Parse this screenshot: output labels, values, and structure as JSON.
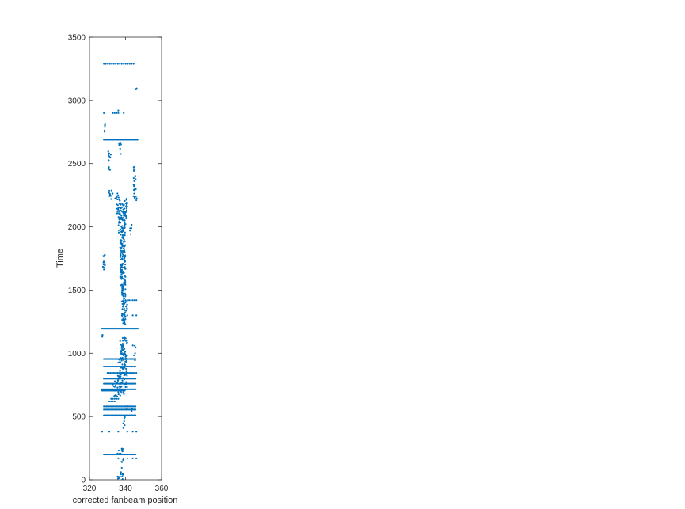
{
  "chart_data": {
    "type": "scatter",
    "title": "",
    "xlabel": "corrected fanbeam position",
    "ylabel": "Time",
    "xlim": [
      320,
      360
    ],
    "ylim": [
      0,
      3500
    ],
    "xticks": [
      320,
      340,
      360
    ],
    "yticks": [
      0,
      500,
      1000,
      1500,
      2000,
      2500,
      3000,
      3500
    ],
    "xtick_labels": [
      "320",
      "340",
      "360"
    ],
    "ytick_labels": [
      "0",
      "500",
      "1000",
      "1500",
      "2000",
      "2500",
      "3000",
      "3500"
    ],
    "grid": false,
    "marker_color": "#0072BD",
    "axis_color": "#262626",
    "series": [
      {
        "dense_rows": [
          {
            "y": 3290,
            "x_from": 328,
            "x_to": 345,
            "step": 1.1
          },
          {
            "y": 2690,
            "x_from": 328,
            "x_to": 347,
            "step": 0.55
          },
          {
            "y": 1195,
            "x_from": 327,
            "x_to": 347,
            "step": 0.6
          },
          {
            "y": 955,
            "x_from": 328,
            "x_to": 346,
            "step": 0.7
          },
          {
            "y": 895,
            "x_from": 328,
            "x_to": 346,
            "step": 0.7
          },
          {
            "y": 845,
            "x_from": 330,
            "x_to": 346,
            "step": 0.8
          },
          {
            "y": 800,
            "x_from": 328,
            "x_to": 346,
            "step": 0.7
          },
          {
            "y": 760,
            "x_from": 328,
            "x_to": 346,
            "step": 0.7
          },
          {
            "y": 715,
            "x_from": 327,
            "x_to": 346,
            "step": 0.6
          },
          {
            "y": 705,
            "x_from": 327,
            "x_to": 340,
            "step": 0.6
          },
          {
            "y": 580,
            "x_from": 328,
            "x_to": 346,
            "step": 0.7
          },
          {
            "y": 555,
            "x_from": 328,
            "x_to": 346,
            "step": 0.7
          },
          {
            "y": 510,
            "x_from": 328,
            "x_to": 346,
            "step": 0.7
          },
          {
            "y": 200,
            "x_from": 328,
            "x_to": 346,
            "step": 0.7
          }
        ],
        "sparse_rows": [
          {
            "y": 2900,
            "x": [
              328,
              333,
              334,
              335,
              336,
              339
            ]
          },
          {
            "y": 2920,
            "x": [
              336
            ]
          },
          {
            "y": 1420,
            "x": [
              340,
              341,
              342,
              343,
              344,
              345,
              346
            ]
          },
          {
            "y": 1300,
            "x": [
              338,
              341,
              344,
              346
            ]
          },
          {
            "y": 380,
            "x": [
              327,
              331,
              336,
              341,
              344,
              346
            ]
          },
          {
            "y": 170,
            "x": [
              336,
              339,
              341,
              344,
              346
            ]
          },
          {
            "y": 640,
            "x": [
              332,
              333,
              334,
              335,
              336
            ]
          },
          {
            "y": 620,
            "x": [
              331,
              332,
              333,
              334
            ]
          }
        ],
        "band": [
          [
            2200,
            335,
            341
          ],
          [
            2170,
            335,
            341
          ],
          [
            2140,
            335,
            341
          ],
          [
            2110,
            335,
            341
          ],
          [
            2080,
            336,
            341
          ],
          [
            2050,
            336,
            340
          ],
          [
            2000,
            336,
            340
          ],
          [
            1950,
            336,
            340
          ],
          [
            1900,
            337,
            340
          ],
          [
            1850,
            337,
            340
          ],
          [
            1800,
            337,
            340
          ],
          [
            1750,
            337,
            340
          ],
          [
            1700,
            337,
            340
          ],
          [
            1650,
            337,
            340
          ],
          [
            1600,
            337,
            340
          ],
          [
            1550,
            337,
            340
          ],
          [
            1500,
            338,
            340
          ],
          [
            1450,
            338,
            340
          ],
          [
            1400,
            338,
            341
          ],
          [
            1350,
            338,
            341
          ],
          [
            1300,
            338,
            340
          ],
          [
            1250,
            338,
            340
          ],
          [
            1100,
            337,
            341
          ],
          [
            1050,
            337,
            341
          ],
          [
            1000,
            337,
            341
          ],
          [
            980,
            337,
            341
          ],
          [
            930,
            336,
            341
          ],
          [
            870,
            336,
            341
          ],
          [
            820,
            335,
            341
          ],
          [
            780,
            334,
            341
          ],
          [
            740,
            333,
            341
          ],
          [
            680,
            333,
            340
          ]
        ],
        "clusters": [
          {
            "x": 331,
            "y": 2560,
            "spread_x": 0.8,
            "spread_y": 40,
            "n": 10
          },
          {
            "x": 331,
            "y": 2460,
            "spread_x": 0.6,
            "spread_y": 20,
            "n": 6
          },
          {
            "x": 332,
            "y": 2250,
            "spread_x": 1.2,
            "spread_y": 40,
            "n": 10
          },
          {
            "x": 335,
            "y": 2250,
            "spread_x": 1.5,
            "spread_y": 30,
            "n": 8
          },
          {
            "x": 345,
            "y": 2330,
            "spread_x": 0.8,
            "spread_y": 100,
            "n": 18
          },
          {
            "x": 344.5,
            "y": 2450,
            "spread_x": 0.3,
            "spread_y": 30,
            "n": 4
          },
          {
            "x": 346,
            "y": 2210,
            "spread_x": 0.4,
            "spread_y": 15,
            "n": 3
          },
          {
            "x": 328,
            "y": 1720,
            "spread_x": 0.6,
            "spread_y": 60,
            "n": 14
          },
          {
            "x": 337,
            "y": 2600,
            "spread_x": 0.6,
            "spread_y": 60,
            "n": 8
          },
          {
            "x": 343,
            "y": 1980,
            "spread_x": 0.5,
            "spread_y": 40,
            "n": 5
          },
          {
            "x": 337,
            "y": 225,
            "spread_x": 1.5,
            "spread_y": 25,
            "n": 12
          },
          {
            "x": 338,
            "y": 100,
            "spread_x": 1.0,
            "spread_y": 60,
            "n": 10
          },
          {
            "x": 337,
            "y": 15,
            "spread_x": 1.5,
            "spread_y": 15,
            "n": 8
          },
          {
            "x": 339,
            "y": 450,
            "spread_x": 0.8,
            "spread_y": 50,
            "n": 6
          },
          {
            "x": 345,
            "y": 1000,
            "spread_x": 1.0,
            "spread_y": 80,
            "n": 6
          },
          {
            "x": 328.5,
            "y": 2780,
            "spread_x": 0.4,
            "spread_y": 30,
            "n": 5
          },
          {
            "x": 346,
            "y": 3090,
            "spread_x": 0.4,
            "spread_y": 8,
            "n": 3
          },
          {
            "x": 327,
            "y": 1130,
            "spread_x": 0.3,
            "spread_y": 20,
            "n": 3
          },
          {
            "x": 342,
            "y": 560,
            "spread_x": 2.5,
            "spread_y": 30,
            "n": 6
          }
        ]
      }
    ]
  }
}
